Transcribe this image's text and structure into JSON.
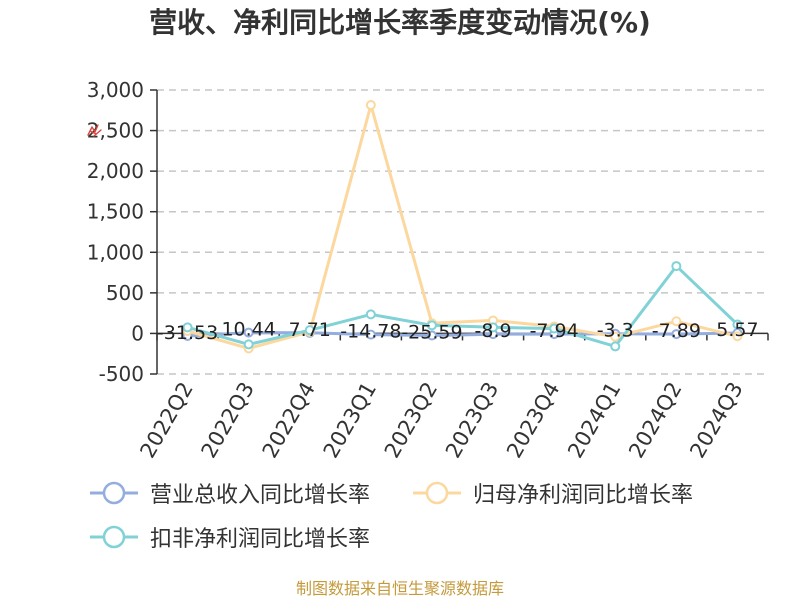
{
  "chart_data": {
    "type": "line",
    "title": "营收、净利同比增长率季度变动情况(%)",
    "categories": [
      "2022Q2",
      "2022Q3",
      "2022Q4",
      "2023Q1",
      "2023Q2",
      "2023Q3",
      "2023Q4",
      "2024Q1",
      "2024Q2",
      "2024Q3"
    ],
    "ylim": [
      -500,
      3000
    ],
    "y_ticks": [
      {
        "value": -500,
        "label": "-500"
      },
      {
        "value": 0,
        "label": "0"
      },
      {
        "value": 500,
        "label": "500"
      },
      {
        "value": 1000,
        "label": "1,000"
      },
      {
        "value": 1500,
        "label": "1,500"
      },
      {
        "value": 2000,
        "label": "2,000"
      },
      {
        "value": 2500,
        "label": "2,500"
      },
      {
        "value": 3000,
        "label": "3,000"
      }
    ],
    "grid": true,
    "legend_position": "bottom",
    "series": [
      {
        "name": "营业总收入同比增长率",
        "color": "#93addf",
        "show_labels": true,
        "values": [
          -31.53,
          10.44,
          7.71,
          -14.78,
          -25.59,
          -8.9,
          -7.94,
          -3.3,
          -7.89,
          5.57
        ]
      },
      {
        "name": "归母净利润同比增长率",
        "color": "#fcd89f",
        "show_labels": false,
        "values": [
          30,
          -185,
          20,
          2815,
          125,
          160,
          85,
          -40,
          150,
          -35
        ]
      },
      {
        "name": "扣非净利润同比增长率",
        "color": "#80d2d6",
        "show_labels": false,
        "values": [
          75,
          -135,
          40,
          235,
          100,
          75,
          60,
          -160,
          830,
          110
        ]
      }
    ]
  },
  "icons": {
    "chart_mark": "red-mark-icon",
    "chart_mark_color": "#d9463f",
    "legend_symbol": "line-with-circle-icon"
  },
  "footer": {
    "source": "制图数据来自恒生聚源数据库"
  }
}
